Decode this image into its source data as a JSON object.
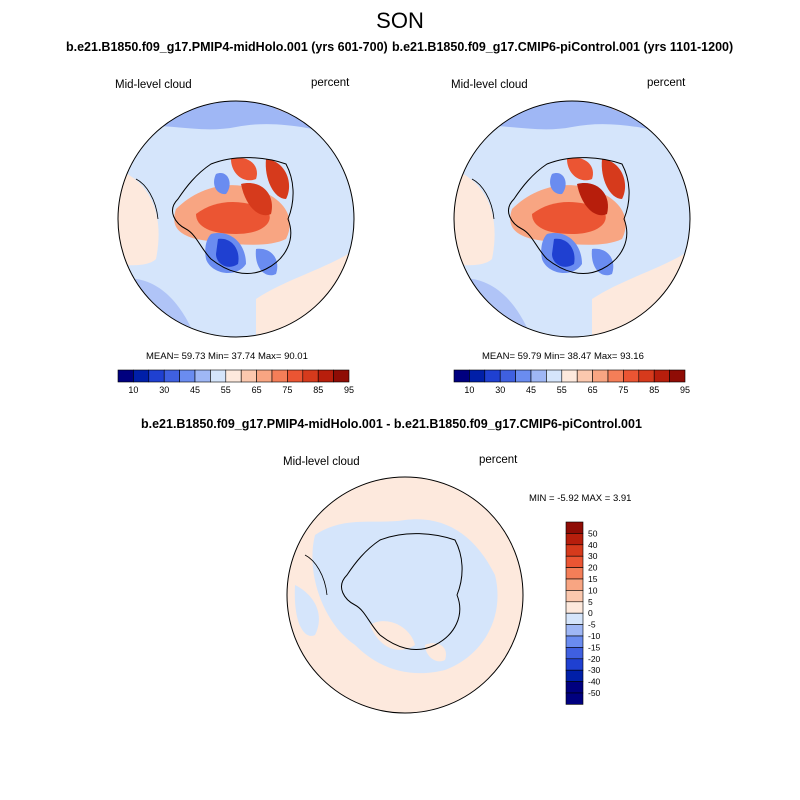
{
  "season": "SON",
  "panels": [
    {
      "title": "b.e21.B1850.f09_g17.PMIP4-midHolo.001 (yrs 601-700)",
      "variable": "Mid-level cloud",
      "units": "percent",
      "stats": "MEAN=  59.73  Min=  37.74  Max=  90.01"
    },
    {
      "title": "b.e21.B1850.f09_g17.CMIP6-piControl.001 (yrs 1101-1200)",
      "variable": "Mid-level cloud",
      "units": "percent",
      "stats": "MEAN=  59.79  Min=  38.47  Max=  93.16"
    }
  ],
  "diff": {
    "title": "b.e21.B1850.f09_g17.PMIP4-midHolo.001 - b.e21.B1850.f09_g17.CMIP6-piControl.001",
    "variable": "Mid-level cloud",
    "units": "percent",
    "stats": "MIN =  -5.92 MAX =   3.91"
  },
  "colorbar_abs": {
    "labels": [
      "10",
      "30",
      "45",
      "55",
      "65",
      "75",
      "85",
      "95"
    ],
    "colors": [
      "#00007f",
      "#001fa8",
      "#1f40d1",
      "#3f60e0",
      "#6a8cf0",
      "#9fb7f5",
      "#d5e5fb",
      "#fde9dd",
      "#fbc8ae",
      "#f8a582",
      "#f47e58",
      "#eb5533",
      "#d63a1c",
      "#b71e0c",
      "#8f0c05"
    ]
  },
  "colorbar_diff": {
    "labels": [
      "50",
      "40",
      "30",
      "20",
      "15",
      "10",
      "5",
      "0",
      "-5",
      "-10",
      "-15",
      "-20",
      "-30",
      "-40",
      "-50"
    ],
    "colors": [
      "#8f0c05",
      "#b71e0c",
      "#d63a1c",
      "#eb5533",
      "#f47e58",
      "#f8a582",
      "#fbc8ae",
      "#fde9dd",
      "#d5e5fb",
      "#9fb7f5",
      "#6a8cf0",
      "#3f60e0",
      "#1f40d1",
      "#001fa8",
      "#00007f"
    ]
  }
}
